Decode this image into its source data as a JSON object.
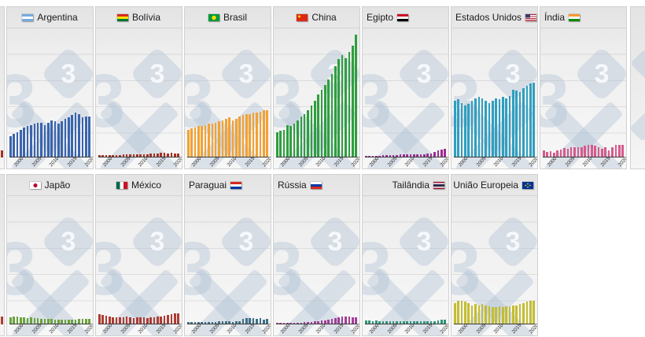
{
  "chart_data": {
    "type": "bar",
    "title": "",
    "xlabel": "",
    "ylabel": "",
    "grid": "horizontal",
    "values_unit": "relative bar height, % of tallest bar (China final year = 100); no y-axis labels visible",
    "ylim": [
      0,
      100
    ],
    "categories": [
      1997,
      1998,
      1999,
      2000,
      2001,
      2002,
      2003,
      2004,
      2005,
      2006,
      2007,
      2008,
      2009,
      2010,
      2011,
      2012,
      2013,
      2014,
      2015,
      2016,
      2017,
      2018,
      2019,
      2020
    ],
    "xticks": [
      "2000",
      "2005",
      "2010",
      "2015",
      "2020"
    ],
    "watermark": {
      "left_digit": "3",
      "diamond_digit": "3",
      "shape": "x",
      "color": "#b0c0d4"
    },
    "panels": [
      {
        "row": 0,
        "name": "Argentina",
        "color": "#3a64ad",
        "align": "center",
        "flag_after": false,
        "flag_css": "linear-gradient(180deg,#74acdf 0 33%,#ffffff 33% 66%,#74acdf 66% 100%)",
        "values": [
          17,
          19,
          20,
          22,
          24,
          25,
          26,
          27,
          28,
          28,
          26,
          28,
          30,
          29,
          27,
          29,
          31,
          32,
          34,
          36,
          35,
          32,
          33,
          33
        ]
      },
      {
        "row": 0,
        "name": "Bolívia",
        "color": "#a63022",
        "align": "center",
        "flag_after": false,
        "flag_css": "linear-gradient(180deg,#d52b1e 0 33%,#f9e300 33% 66%,#007934 66% 100%)",
        "values": [
          1.3,
          1.3,
          1.3,
          1.3,
          1.3,
          1.5,
          1.5,
          1.8,
          1.8,
          1.8,
          2,
          2,
          2,
          2,
          2,
          2.5,
          2.5,
          2.5,
          3,
          3,
          2.5,
          3,
          2.5,
          2.5
        ]
      },
      {
        "row": 0,
        "name": "Brasil",
        "color": "#f2a233",
        "align": "center",
        "flag_after": false,
        "flag_css": "radial-gradient(circle at 50% 50%, #ffdf00 0 2.6px, #009c3b 2.8px)",
        "values": [
          22,
          23,
          24,
          25,
          25,
          26,
          27,
          27,
          28,
          29,
          30,
          31,
          32,
          30,
          31,
          33,
          34,
          35,
          35,
          36,
          36,
          37,
          38,
          38
        ]
      },
      {
        "row": 0,
        "name": "China",
        "color": "#2f9e3f",
        "align": "center",
        "flag_after": false,
        "flag_css": "radial-gradient(circle at 25% 32%, #ffde00 0 1.4px, #de2910 1.6px)",
        "values": [
          20,
          21,
          22,
          26,
          25,
          27,
          30,
          33,
          35,
          38,
          42,
          46,
          51,
          55,
          59,
          63,
          68,
          74,
          80,
          83,
          81,
          86,
          91,
          100
        ]
      },
      {
        "row": 0,
        "name": "Egipto",
        "color": "#9b2d93",
        "align": "left",
        "flag_after": true,
        "flag_css": "linear-gradient(180deg,#ce1126 0 33%,#ffffff 33% 66%,#000000 66% 100%)",
        "values": [
          0.3,
          0.3,
          0.4,
          0.6,
          0.6,
          1,
          1.2,
          1.2,
          1.4,
          1.6,
          1.8,
          1.8,
          1.8,
          1.8,
          1.8,
          1.8,
          1.8,
          2,
          2.5,
          2.5,
          3.8,
          5,
          5.7,
          6.3
        ]
      },
      {
        "row": 0,
        "name": "Estados Unidos",
        "color": "#2f9fc0",
        "align": "left",
        "flag_after": true,
        "flag_css": "linear-gradient(#3c3b6e,#3c3b6e) 0 0/45% 50% no-repeat, repeating-linear-gradient(180deg,#b22234 0 1.2px,#ffffff 1.2px 2.4px)",
        "values": [
          46,
          47,
          44,
          42,
          43,
          46,
          48,
          49,
          48,
          46,
          44,
          46,
          48,
          47,
          49,
          48,
          50,
          55,
          54,
          53,
          56,
          58,
          60,
          61
        ]
      },
      {
        "row": 0,
        "name": "Índia",
        "color": "#d75a8b",
        "align": "left",
        "flag_after": true,
        "flag_css": "linear-gradient(180deg,#ff9933 0 33%,#ffffff 33% 66%,#138808 66% 100%)",
        "values": [
          5,
          4,
          4.5,
          3,
          5,
          6,
          7,
          6.5,
          7.5,
          7.5,
          8,
          7.5,
          9,
          9.5,
          10,
          9,
          7.5,
          6.5,
          7.5,
          5,
          8,
          9.5,
          9.5,
          10
        ]
      },
      {
        "row": 1,
        "name": "Japão",
        "color": "#6aa33b",
        "align": "center",
        "flag_after": false,
        "flag_css": "radial-gradient(circle at 50% 50%, #bc002d 0 2.4px, #ffffff 2.6px)",
        "values": [
          5,
          5.7,
          5.7,
          5,
          5,
          4.5,
          5,
          4.5,
          4.5,
          4,
          4,
          4,
          4,
          3,
          3,
          3,
          3,
          3,
          3,
          3,
          3.8,
          3.8,
          3.8,
          3.8
        ]
      },
      {
        "row": 1,
        "name": "México",
        "color": "#ae3c32",
        "align": "center",
        "flag_after": false,
        "flag_css": "linear-gradient(90deg,#006847 0 33%,#ffffff 33% 66%,#ce1126 66% 100%)",
        "values": [
          7.5,
          7,
          6.4,
          5.7,
          5,
          5,
          5,
          5,
          5.7,
          5,
          4.5,
          5,
          5,
          5,
          4.5,
          5,
          5,
          5.7,
          5.7,
          6.4,
          7,
          7.6,
          8.3,
          8.3
        ]
      },
      {
        "row": 1,
        "name": "Paraguai",
        "color": "#3e7086",
        "align": "left",
        "flag_after": true,
        "flag_css": "linear-gradient(180deg,#d52b1e 0 33%,#ffffff 33% 66%,#0038a8 66% 100%)",
        "values": [
          1.3,
          1.3,
          1.3,
          1.3,
          1.3,
          1.3,
          1.3,
          1.3,
          1.3,
          2,
          2,
          2,
          2,
          1.3,
          2,
          2,
          3.8,
          4.5,
          4.5,
          4.5,
          3.8,
          4.5,
          3.2,
          3.8
        ]
      },
      {
        "row": 1,
        "name": "Rússia",
        "color": "#a23f97",
        "align": "left",
        "flag_after": true,
        "flag_css": "linear-gradient(180deg,#ffffff 0 33%,#0039a6 33% 66%,#d52b1e 66% 100%)",
        "values": [
          0.2,
          0.2,
          0.2,
          0.3,
          0.3,
          0.3,
          0.6,
          0.6,
          1,
          1.3,
          1.3,
          2,
          2,
          2.5,
          2.5,
          3.2,
          3.8,
          4.5,
          5,
          5.7,
          5.7,
          5.7,
          5,
          5
        ]
      },
      {
        "row": 1,
        "name": "Tailândia",
        "color": "#2f9678",
        "align": "right",
        "flag_after": true,
        "flag_css": "linear-gradient(180deg,#a51931 0 17%,#f4f5f8 17% 33%,#2d2a4a 33% 67%,#f4f5f8 67% 83%,#a51931 83% 100%)",
        "values": [
          2.5,
          2.5,
          2,
          2.5,
          2,
          2,
          2,
          2,
          2,
          2,
          2,
          2,
          2,
          2,
          2,
          2,
          2,
          2,
          2,
          2,
          2,
          2.5,
          3.2,
          3.2
        ]
      },
      {
        "row": 1,
        "name": "União Europeia",
        "color": "#c3bd32",
        "align": "right",
        "flag_after": true,
        "flag_css": "radial-gradient(circle at 50% 28%, #ffcc00 0 0.7px, transparent 1px), radial-gradient(circle at 30% 50%, #ffcc00 0 0.7px, transparent 1px), radial-gradient(circle at 70% 50%, #ffcc00 0 0.7px, transparent 1px), radial-gradient(circle at 50% 72%, #ffcc00 0 0.7px, transparent 1px), linear-gradient(#003399,#003399)",
        "values": [
          17,
          18.5,
          19,
          18,
          16.5,
          15,
          16,
          15,
          16,
          15,
          14,
          13.5,
          13.5,
          14,
          13.5,
          14.5,
          14.5,
          15,
          15,
          16,
          16.5,
          18,
          18.5,
          19
        ]
      }
    ],
    "legend_position": "panel headers (flag + country name)",
    "colors": {
      "panel_background_top": "#e3e3e3",
      "panel_background_bottom": "#f7f7f7",
      "panel_border": "#d0d0d0",
      "gridline": "#5a5a5a",
      "axis_line": "#3c3c3c",
      "tick_label": "#333333",
      "watermark": "#b0c0d4"
    }
  }
}
